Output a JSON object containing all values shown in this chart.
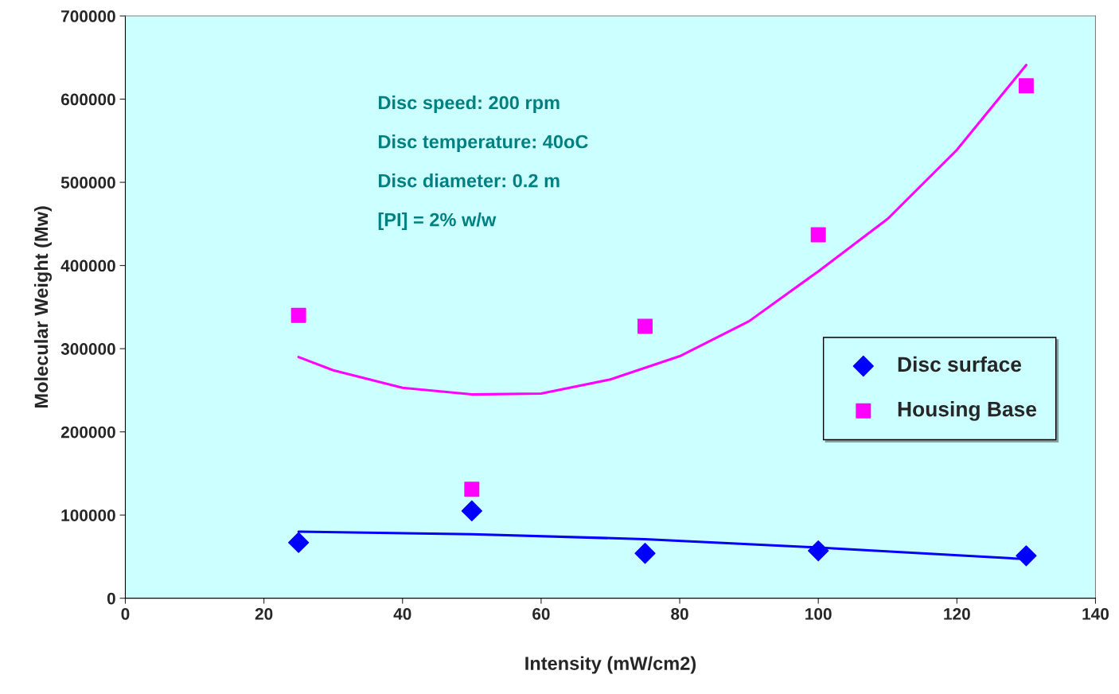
{
  "chart_data": {
    "type": "scatter",
    "xlabel": "Intensity (mW/cm2)",
    "ylabel": "Molecular Weight (Mw)",
    "xlim": [
      0,
      140
    ],
    "xticks": [
      0,
      20,
      40,
      60,
      80,
      100,
      120,
      140
    ],
    "ylim": [
      0,
      700000
    ],
    "yticks": [
      0,
      100000,
      200000,
      300000,
      400000,
      500000,
      600000,
      700000
    ],
    "grid": false,
    "legend": "right",
    "annotations": [
      "Disc speed: 200 rpm",
      "Disc temperature: 40oC",
      "Disc diameter: 0.2 m",
      "[PI] = 2% w/w"
    ],
    "series": [
      {
        "name": "Disc surface",
        "marker": "diamond",
        "color": "#0000ff",
        "x": [
          25,
          50,
          75,
          100,
          130
        ],
        "values": [
          67000,
          105000,
          54000,
          57000,
          51000
        ]
      },
      {
        "name": "Housing Base",
        "marker": "square",
        "color": "#ff00ff",
        "x": [
          25,
          50,
          75,
          100,
          130
        ],
        "values": [
          340000,
          131000,
          327000,
          437000,
          616000
        ]
      },
      {
        "type": "line",
        "color": "#0000ff",
        "x": [
          25,
          50,
          75,
          100,
          130
        ],
        "values": [
          80000,
          77000,
          71000,
          61000,
          47000
        ]
      },
      {
        "type": "line",
        "color": "#ff00ff",
        "x": [
          25,
          30,
          40,
          50,
          60,
          70,
          80,
          90,
          100,
          110,
          120,
          130
        ],
        "values": [
          290000,
          274000,
          253000,
          245000,
          246000,
          263000,
          291000,
          333000,
          393000,
          456000,
          539000,
          641000
        ]
      }
    ]
  }
}
